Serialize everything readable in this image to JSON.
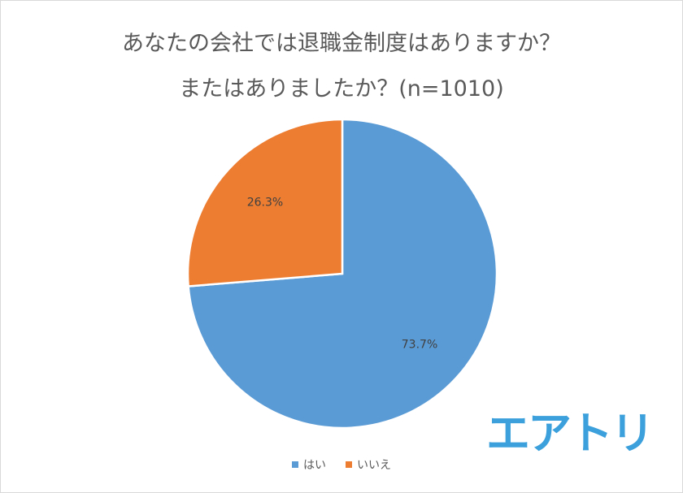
{
  "chart_data": {
    "type": "pie",
    "title": [
      "あなたの会社では退職金制度はありますか？",
      "またはありましたか？(n=1010)"
    ],
    "slices": [
      {
        "label": "はい",
        "value": 73.7,
        "display": "73.7%",
        "color": "#5b9bd5"
      },
      {
        "label": "いいえ",
        "value": 26.3,
        "display": "26.3%",
        "color": "#ed7d31"
      }
    ],
    "legend_position": "bottom"
  },
  "logo": {
    "text": "エアトリ",
    "color": "#3ba0db"
  }
}
